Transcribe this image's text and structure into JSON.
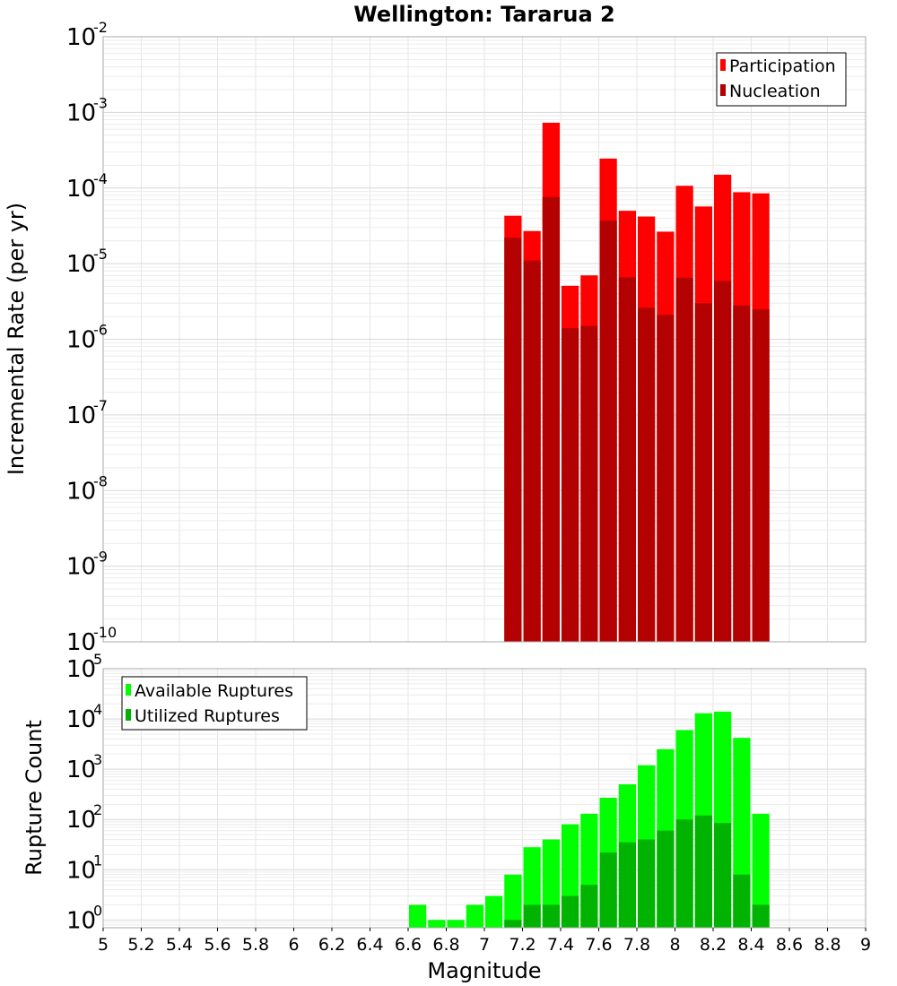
{
  "chart_data": {
    "type": "bar",
    "title": "Wellington: Tararua 2",
    "xlabel": "Magnitude",
    "xlim": [
      5,
      9
    ],
    "x_ticks": [
      "5",
      "5.2",
      "5.4",
      "5.6",
      "5.8",
      "6",
      "6.2",
      "6.4",
      "6.6",
      "6.8",
      "7",
      "7.2",
      "7.4",
      "7.6",
      "7.8",
      "8",
      "8.2",
      "8.4",
      "8.6",
      "8.8",
      "9"
    ],
    "bin_width": 0.1,
    "panels": [
      {
        "ylabel": "Incremental Rate (per yr)",
        "yscale": "log",
        "ylim": [
          1e-10,
          0.01
        ],
        "y_exponents": [
          "-10",
          "-9",
          "-8",
          "-7",
          "-6",
          "-5",
          "-4",
          "-3",
          "-2"
        ],
        "legend_position": "top-right",
        "grid": true,
        "series": [
          {
            "name": "Participation",
            "color": "#ff0000",
            "x": [
              7.15,
              7.25,
              7.35,
              7.45,
              7.55,
              7.65,
              7.75,
              7.85,
              7.95,
              8.05,
              8.15,
              8.25,
              8.35,
              8.45
            ],
            "values": [
              4.3e-05,
              2.7e-05,
              0.00073,
              5.1e-06,
              7e-06,
              0.000245,
              5e-05,
              4.2e-05,
              2.65e-05,
              0.000107,
              5.7e-05,
              0.00015,
              8.8e-05,
              8.5e-05
            ]
          },
          {
            "name": "Nucleation",
            "color": "#b30000",
            "x": [
              7.15,
              7.25,
              7.35,
              7.45,
              7.55,
              7.65,
              7.75,
              7.85,
              7.95,
              8.05,
              8.15,
              8.25,
              8.35,
              8.45
            ],
            "values": [
              2.2e-05,
              1.1e-05,
              7.6e-05,
              1.4e-06,
              1.5e-06,
              3.7e-05,
              6.6e-06,
              2.6e-06,
              2.1e-06,
              6.5e-06,
              3e-06,
              5.9e-06,
              2.8e-06,
              2.5e-06
            ]
          }
        ]
      },
      {
        "ylabel": "Rupture Count",
        "yscale": "log",
        "ylim": [
          0.7,
          100000
        ],
        "y_exponents": [
          "0",
          "1",
          "2",
          "3",
          "4",
          "5"
        ],
        "legend_position": "top-left",
        "grid": true,
        "series": [
          {
            "name": "Available Ruptures",
            "color": "#00ff00",
            "x": [
              6.65,
              6.75,
              6.85,
              6.95,
              7.05,
              7.15,
              7.25,
              7.35,
              7.45,
              7.55,
              7.65,
              7.75,
              7.85,
              7.95,
              8.05,
              8.15,
              8.25,
              8.35,
              8.45
            ],
            "values": [
              2,
              1,
              1,
              2,
              3,
              8,
              28,
              40,
              80,
              130,
              270,
              500,
              1200,
              2500,
              6000,
              13000,
              14000,
              4200,
              130
            ]
          },
          {
            "name": "Utilized Ruptures",
            "color": "#00b300",
            "x": [
              7.15,
              7.25,
              7.35,
              7.45,
              7.55,
              7.65,
              7.75,
              7.85,
              7.95,
              8.05,
              8.15,
              8.25,
              8.35,
              8.45
            ],
            "values": [
              1,
              2,
              2,
              3,
              5,
              22,
              35,
              40,
              60,
              100,
              120,
              85,
              8,
              2
            ]
          }
        ]
      }
    ]
  }
}
